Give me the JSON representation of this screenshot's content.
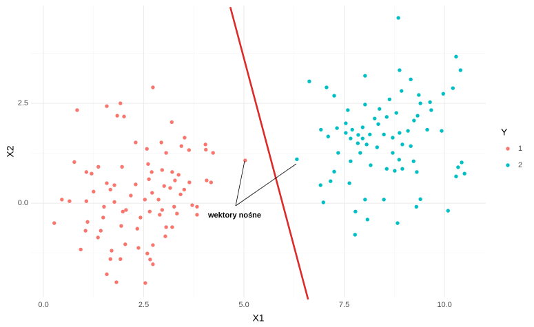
{
  "chart_data": {
    "type": "scatter",
    "x_label": "X1",
    "y_label": "X2",
    "legend_title": "Y",
    "legend": "right",
    "grid": true,
    "xlim": [
      -0.31,
      11.03
    ],
    "ylim": [
      -2.36,
      4.95
    ],
    "xticks": [
      {
        "value": 0,
        "label": "0.0"
      },
      {
        "value": 2.5,
        "label": "2.5"
      },
      {
        "value": 5,
        "label": "5.0"
      },
      {
        "value": 7.5,
        "label": "7.5"
      },
      {
        "value": 10,
        "label": "10.0"
      }
    ],
    "yticks": [
      {
        "value": 0,
        "label": "0.0"
      },
      {
        "value": 2.5,
        "label": "2.5"
      }
    ],
    "xminor": [
      1.25,
      3.75,
      6.25,
      8.75
    ],
    "yminor": [
      -1.25,
      1.25,
      3.75
    ],
    "annotation": "wektory nośne",
    "line": {
      "x": [
        4.66,
        6.6
      ],
      "y": [
        4.91,
        -2.41
      ],
      "color": "#dd2a2a"
    },
    "series": [
      {
        "name": "1",
        "color": "#F8766D",
        "x": [
          2.73,
          0.84,
          1.58,
          1.92,
          1.84,
          2.01,
          3.2,
          3.52,
          4.04,
          4.05,
          4.23,
          2.3,
          2.94,
          2.58,
          3.06,
          3.44,
          3.63,
          0.77,
          1.37,
          1.07,
          1.2,
          1.96,
          2.61,
          2.96,
          3.21,
          2.7,
          3.37,
          2.63,
          3.28,
          3.64,
          4.07,
          4.18,
          5.03,
          1.58,
          1.77,
          2.3,
          3.01,
          1.25,
          1.67,
          2.18,
          2.71,
          3.16,
          3.51,
          0.46,
          0.65,
          1.07,
          1.77,
          2.53,
          2.87,
          3.42,
          3.71,
          3.83,
          1.51,
          2.06,
          1.98,
          2.65,
          2.96,
          3.26,
          2.9,
          3.33,
          0.27,
          1.1,
          1.49,
          2.42,
          3.06,
          3.21,
          3.83,
          1.05,
          1.43,
          1.94,
          2.34,
          3.04,
          1.36,
          0.93,
          2.04,
          2.37,
          2.73,
          2.59,
          1.7,
          1.67,
          1.92,
          2.66,
          2.73,
          1.58,
          1.82,
          2.54
        ],
        "y": [
          2.9,
          2.33,
          2.43,
          2.5,
          2.19,
          2.17,
          2.03,
          1.64,
          1.47,
          1.34,
          1.26,
          1.52,
          1.52,
          1.36,
          1.26,
          1.43,
          1.33,
          1.03,
          0.91,
          0.78,
          0.74,
          0.91,
          0.98,
          0.83,
          0.78,
          0.78,
          0.71,
          0.6,
          0.57,
          0.52,
          0.57,
          0.52,
          1.07,
          0.5,
          0.45,
          0.47,
          0.43,
          0.29,
          0.34,
          0.19,
          0.26,
          0.38,
          0.34,
          0.09,
          0.05,
          0.05,
          0.03,
          0.09,
          0.09,
          0.22,
          -0.05,
          -0.09,
          -0.09,
          -0.17,
          -0.21,
          -0.21,
          -0.17,
          -0.09,
          -0.29,
          -0.26,
          -0.5,
          -0.47,
          -0.36,
          -0.36,
          -0.6,
          -0.6,
          -0.29,
          -0.69,
          -0.69,
          -0.57,
          -0.64,
          -0.83,
          -0.86,
          -1.16,
          -1.03,
          -1.12,
          -1.05,
          -1.26,
          -1.19,
          -1.4,
          -1.4,
          -1.41,
          -1.53,
          -1.78,
          -1.98,
          -2.0
        ]
      },
      {
        "name": "2",
        "color": "#00BFC4",
        "x": [
          8.85,
          10.29,
          6.63,
          7.06,
          7.25,
          8.02,
          8.88,
          9.16,
          10.4,
          10.21,
          9.97,
          9.36,
          8.93,
          8.63,
          9.4,
          9.64,
          8.38,
          8.02,
          7.59,
          6.92,
          7.1,
          7.32,
          7.54,
          7.54,
          7.66,
          7.7,
          7.85,
          7.84,
          7.96,
          7.96,
          8.06,
          8.14,
          8.26,
          8.35,
          8.32,
          8.49,
          8.56,
          8.71,
          8.8,
          8.88,
          8.95,
          9.09,
          9.24,
          9.33,
          9.57,
          9.67,
          9.93,
          9.16,
          8.71,
          8.87,
          9.23,
          8.95,
          8.56,
          8.16,
          7.9,
          7.66,
          7.35,
          6.32,
          7.25,
          7.16,
          7.63,
          6.91,
          9.31,
          8.76,
          10.34,
          10.43,
          10.29,
          10.5,
          6.98,
          8.02,
          8.49,
          9.4,
          9.3,
          10.09,
          7.78,
          8.08,
          8.83,
          7.77
        ],
        "y": [
          4.64,
          3.67,
          3.05,
          2.9,
          2.69,
          3.19,
          3.33,
          3.1,
          3.33,
          2.88,
          2.74,
          2.71,
          2.81,
          2.6,
          2.5,
          2.53,
          2.36,
          2.47,
          2.33,
          1.84,
          1.67,
          1.88,
          2.0,
          1.76,
          1.62,
          1.84,
          1.71,
          1.5,
          1.9,
          1.62,
          1.47,
          1.72,
          2.12,
          1.98,
          1.4,
          1.72,
          2.16,
          1.64,
          2.26,
          1.76,
          1.47,
          1.81,
          2.07,
          2.19,
          1.84,
          2.33,
          1.81,
          1.43,
          1.26,
          1.09,
          1.05,
          0.86,
          0.86,
          0.95,
          1.26,
          1.05,
          1.26,
          1.1,
          0.79,
          0.55,
          0.5,
          0.45,
          0.78,
          0.81,
          0.9,
          1.02,
          0.67,
          0.74,
          0.02,
          0.09,
          0.09,
          0.1,
          -0.09,
          -0.19,
          -0.21,
          -0.41,
          -0.5,
          -0.79
        ]
      }
    ]
  }
}
